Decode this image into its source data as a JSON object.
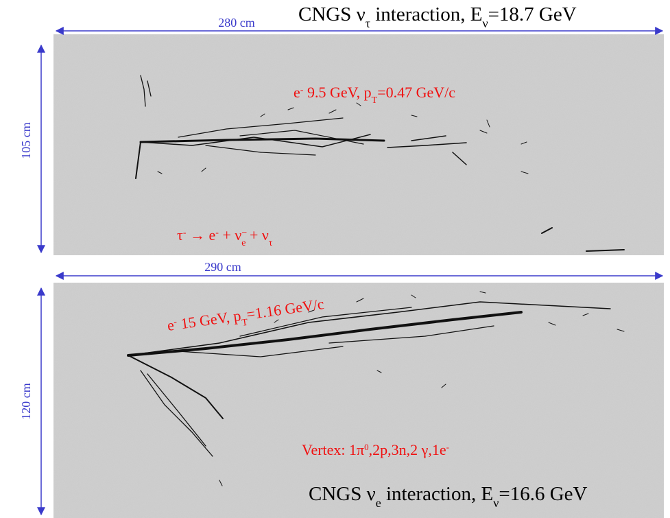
{
  "panels": [
    {
      "width_label": "280 cm",
      "height_label": "105 cm",
      "title_parts": [
        "CNGS  ν",
        "τ",
        " interaction, E",
        "ν",
        "=18.7 GeV"
      ],
      "electron_parts": [
        "e",
        "-",
        " 9.5 GeV, p",
        "T",
        "=0.47 GeV/c"
      ],
      "decay_parts": [
        "τ",
        "-",
        " → e",
        "-",
        " + ν",
        "−",
        "e",
        " + ν",
        "τ"
      ]
    },
    {
      "width_label": "290 cm",
      "height_label": "120 cm",
      "electron_parts": [
        "e",
        "-",
        " 15 GeV, p",
        "T",
        "=1.16 GeV/c"
      ],
      "vertex_parts": [
        "Vertex: 1π",
        "0",
        ",2p,3n,2 γ,1e",
        "-"
      ],
      "title_parts": [
        "CNGS  ν",
        "e",
        " interaction, E",
        "ν",
        "=16.6 GeV"
      ]
    }
  ]
}
